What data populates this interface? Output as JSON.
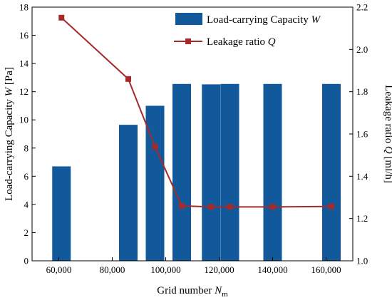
{
  "chart_data": {
    "type": "bar",
    "x": [
      61000,
      86000,
      96000,
      106000,
      117000,
      124000,
      140000,
      162000
    ],
    "xlim": [
      50000,
      170000
    ],
    "x_ticks": [
      60000,
      80000,
      100000,
      120000,
      140000,
      160000
    ],
    "x_tick_labels": [
      "60,000",
      "80,000",
      "100,000",
      "120,000",
      "140,000",
      "160,000"
    ],
    "xlabel": {
      "main": "Grid number ",
      "var": "N",
      "sub": "m"
    },
    "series": [
      {
        "name": {
          "main": "Load-carrying Capacity ",
          "var": "W"
        },
        "type": "bar",
        "axis": "left",
        "values": [
          6.7,
          9.65,
          11.0,
          12.55,
          12.52,
          12.55,
          12.55,
          12.55
        ],
        "color": "#11599a"
      },
      {
        "name": {
          "main": "Leakage ratio ",
          "var": "Q"
        },
        "type": "line",
        "axis": "right",
        "marker": "square",
        "values": [
          2.15,
          1.86,
          1.54,
          1.26,
          1.255,
          1.255,
          1.255,
          1.257
        ],
        "color": "#a52a2a"
      }
    ],
    "ylabel_left": {
      "main": "Load-carrying Capacity ",
      "var": "W",
      "unit": " [Pa]"
    },
    "ylim_left": [
      0,
      18
    ],
    "y_ticks_left": [
      0,
      2,
      4,
      6,
      8,
      10,
      12,
      14,
      16,
      18
    ],
    "ylabel_right": {
      "main": "Leakage ratio ",
      "var": "Q",
      "unit": " [ml/h]"
    },
    "ylim_right": [
      1.0,
      2.2
    ],
    "y_ticks_right": [
      "1.0",
      "1.2",
      "1.4",
      "1.6",
      "1.8",
      "2.0",
      "2.2"
    ],
    "legend_position": "top-right",
    "grid": false
  }
}
